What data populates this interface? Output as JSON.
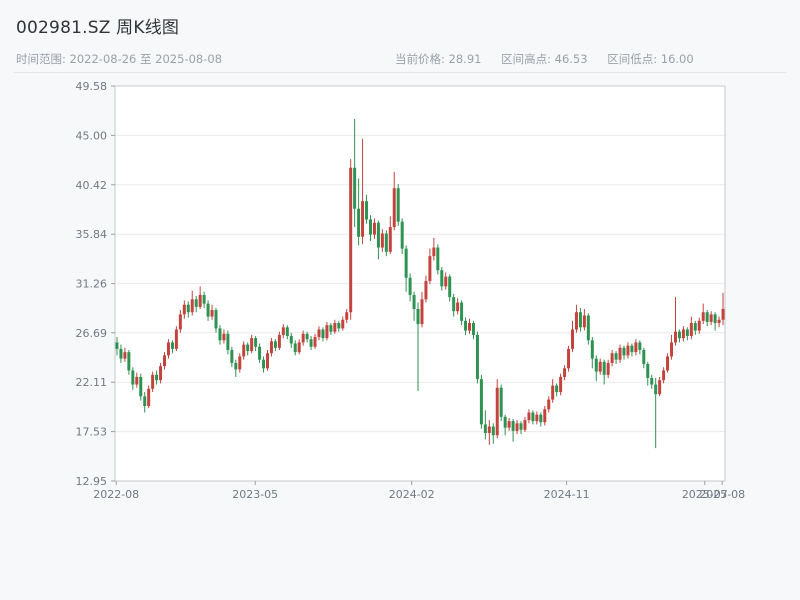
{
  "header": {
    "title": "002981.SZ 周K线图",
    "time_range_label": "时间范围: 2022-08-26 至 2025-08-08",
    "stats": {
      "current_price_label": "当前价格: 28.91",
      "range_high_label": "区间高点: 46.53",
      "range_low_label": "区间低点: 16.00"
    }
  },
  "chart_data": {
    "type": "candlestick",
    "symbol": "002981.SZ",
    "interval": "weekly",
    "start_date": "2022-08-26",
    "end_date": "2025-08-08",
    "current_price": 28.91,
    "range_high": 46.53,
    "range_low": 16.0,
    "ylim": [
      12.95,
      49.58
    ],
    "y_ticks": [
      12.95,
      17.53,
      22.11,
      26.69,
      31.26,
      35.84,
      40.42,
      45.0,
      49.58
    ],
    "x_ticks": [
      {
        "pos": 0.3,
        "label": "2022-08"
      },
      {
        "pos": 35.4,
        "label": "2023-05"
      },
      {
        "pos": 74.9,
        "label": "2024-02"
      },
      {
        "pos": 114.0,
        "label": "2024-11"
      },
      {
        "pos": 148.9,
        "label": "2025-07"
      },
      {
        "pos": 153.3,
        "label": "2025-08"
      }
    ],
    "grid": "horizontal",
    "legend": "none",
    "colors": {
      "up": "#c5433d",
      "down": "#2e9352",
      "grid": "#ececef",
      "axis": "#c6cad0",
      "tick": "#9aa0a8",
      "plot_bg": "#ffffff"
    },
    "ohlc": [
      [
        25.8,
        26.3,
        24.6,
        25.2
      ],
      [
        25.2,
        25.6,
        23.9,
        24.3
      ],
      [
        24.3,
        25.3,
        24.0,
        24.9
      ],
      [
        24.9,
        25.1,
        22.8,
        23.2
      ],
      [
        23.2,
        23.5,
        21.4,
        21.9
      ],
      [
        21.9,
        23.0,
        21.6,
        22.6
      ],
      [
        22.6,
        22.9,
        20.4,
        20.8
      ],
      [
        20.8,
        21.2,
        19.3,
        19.9
      ],
      [
        19.9,
        21.8,
        19.7,
        21.5
      ],
      [
        21.5,
        23.1,
        21.2,
        22.8
      ],
      [
        22.8,
        23.2,
        21.9,
        22.3
      ],
      [
        22.3,
        23.9,
        22.0,
        23.6
      ],
      [
        23.6,
        24.9,
        23.3,
        24.6
      ],
      [
        24.6,
        26.1,
        24.3,
        25.8
      ],
      [
        25.8,
        26.0,
        24.8,
        25.2
      ],
      [
        25.2,
        27.3,
        25.0,
        27.0
      ],
      [
        27.0,
        28.8,
        26.7,
        28.4
      ],
      [
        28.4,
        29.7,
        28.0,
        29.3
      ],
      [
        29.3,
        29.6,
        28.1,
        28.6
      ],
      [
        28.6,
        30.6,
        28.3,
        29.8
      ],
      [
        29.8,
        30.1,
        28.6,
        29.1
      ],
      [
        29.1,
        31.0,
        28.9,
        30.2
      ],
      [
        30.2,
        30.5,
        29.0,
        29.4
      ],
      [
        29.4,
        29.7,
        27.8,
        28.2
      ],
      [
        28.2,
        29.3,
        27.9,
        28.8
      ],
      [
        28.8,
        29.0,
        26.7,
        27.1
      ],
      [
        27.1,
        27.4,
        25.6,
        26.0
      ],
      [
        26.0,
        27.0,
        25.7,
        26.6
      ],
      [
        26.6,
        26.9,
        24.7,
        25.1
      ],
      [
        25.1,
        25.4,
        23.5,
        23.9
      ],
      [
        23.9,
        24.2,
        22.6,
        23.3
      ],
      [
        23.3,
        24.8,
        23.0,
        24.5
      ],
      [
        24.5,
        25.9,
        24.2,
        25.6
      ],
      [
        25.6,
        25.8,
        24.6,
        25.0
      ],
      [
        25.0,
        26.5,
        24.8,
        26.2
      ],
      [
        26.2,
        26.4,
        25.0,
        25.4
      ],
      [
        25.4,
        25.7,
        23.9,
        24.2
      ],
      [
        24.2,
        24.5,
        23.0,
        23.4
      ],
      [
        23.4,
        25.1,
        23.2,
        24.8
      ],
      [
        24.8,
        26.2,
        24.5,
        25.9
      ],
      [
        25.9,
        26.1,
        25.0,
        25.3
      ],
      [
        25.3,
        26.8,
        25.1,
        26.5
      ],
      [
        26.5,
        27.5,
        26.2,
        27.2
      ],
      [
        27.2,
        27.4,
        26.1,
        26.4
      ],
      [
        26.4,
        26.7,
        25.3,
        25.7
      ],
      [
        25.7,
        26.0,
        24.6,
        24.9
      ],
      [
        24.9,
        26.1,
        24.7,
        25.8
      ],
      [
        25.8,
        26.9,
        25.5,
        26.6
      ],
      [
        26.6,
        26.8,
        25.8,
        26.1
      ],
      [
        26.1,
        26.4,
        25.1,
        25.4
      ],
      [
        25.4,
        26.6,
        25.2,
        26.3
      ],
      [
        26.3,
        27.3,
        26.0,
        27.0
      ],
      [
        27.0,
        27.2,
        25.9,
        26.2
      ],
      [
        26.2,
        27.7,
        26.0,
        27.4
      ],
      [
        27.4,
        27.6,
        26.5,
        26.8
      ],
      [
        26.8,
        27.9,
        26.6,
        27.6
      ],
      [
        27.6,
        27.8,
        26.8,
        27.1
      ],
      [
        27.1,
        28.2,
        26.9,
        27.9
      ],
      [
        27.9,
        28.9,
        27.6,
        28.6
      ],
      [
        28.6,
        42.8,
        27.9,
        42.0
      ],
      [
        42.0,
        46.53,
        36.5,
        38.2
      ],
      [
        38.2,
        41.0,
        34.8,
        35.6
      ],
      [
        35.6,
        44.7,
        34.9,
        38.9
      ],
      [
        38.9,
        39.5,
        36.8,
        37.2
      ],
      [
        37.2,
        37.6,
        35.2,
        35.8
      ],
      [
        35.8,
        37.3,
        35.4,
        36.9
      ],
      [
        36.9,
        37.1,
        33.5,
        34.6
      ],
      [
        34.6,
        36.3,
        34.2,
        35.9
      ],
      [
        35.9,
        36.2,
        33.8,
        34.2
      ],
      [
        34.2,
        37.5,
        34.0,
        36.5
      ],
      [
        36.5,
        41.6,
        36.2,
        40.1
      ],
      [
        40.1,
        40.5,
        36.6,
        37.0
      ],
      [
        37.0,
        37.3,
        34.0,
        34.5
      ],
      [
        34.5,
        34.8,
        30.5,
        31.8
      ],
      [
        31.8,
        32.2,
        29.6,
        30.2
      ],
      [
        30.2,
        30.5,
        27.8,
        28.9
      ],
      [
        28.9,
        29.5,
        21.3,
        27.5
      ],
      [
        27.5,
        30.5,
        27.2,
        29.8
      ],
      [
        29.8,
        32.0,
        29.5,
        31.5
      ],
      [
        31.5,
        34.5,
        31.2,
        33.8
      ],
      [
        33.8,
        35.5,
        33.4,
        34.6
      ],
      [
        34.6,
        34.9,
        32.1,
        32.5
      ],
      [
        32.5,
        32.8,
        30.6,
        31.0
      ],
      [
        31.0,
        32.3,
        30.7,
        31.9
      ],
      [
        31.9,
        32.1,
        29.6,
        30.0
      ],
      [
        30.0,
        30.3,
        28.2,
        28.7
      ],
      [
        28.7,
        29.9,
        28.4,
        29.5
      ],
      [
        29.5,
        29.7,
        27.4,
        27.8
      ],
      [
        27.8,
        28.1,
        26.5,
        26.9
      ],
      [
        26.9,
        28.0,
        26.6,
        27.6
      ],
      [
        27.6,
        27.8,
        26.1,
        26.5
      ],
      [
        26.5,
        26.8,
        22.0,
        22.4
      ],
      [
        22.4,
        22.8,
        17.8,
        18.2
      ],
      [
        18.2,
        19.5,
        16.8,
        17.4
      ],
      [
        17.4,
        18.6,
        16.3,
        18.0
      ],
      [
        18.0,
        18.3,
        16.4,
        17.2
      ],
      [
        17.2,
        22.4,
        16.9,
        21.6
      ],
      [
        21.6,
        21.9,
        18.5,
        18.9
      ],
      [
        18.9,
        19.1,
        17.2,
        17.9
      ],
      [
        17.9,
        18.8,
        17.6,
        18.5
      ],
      [
        18.5,
        18.7,
        16.6,
        17.6
      ],
      [
        17.6,
        18.6,
        17.3,
        18.3
      ],
      [
        18.3,
        18.5,
        17.3,
        17.7
      ],
      [
        17.7,
        18.9,
        17.5,
        18.6
      ],
      [
        18.6,
        19.6,
        18.3,
        19.3
      ],
      [
        19.3,
        19.5,
        18.2,
        18.5
      ],
      [
        18.5,
        19.4,
        18.2,
        19.1
      ],
      [
        19.1,
        19.3,
        18.0,
        18.4
      ],
      [
        18.4,
        19.9,
        18.1,
        19.6
      ],
      [
        19.6,
        20.8,
        19.3,
        20.5
      ],
      [
        20.5,
        22.4,
        20.2,
        21.8
      ],
      [
        21.8,
        22.0,
        20.8,
        21.2
      ],
      [
        21.2,
        22.9,
        20.9,
        22.6
      ],
      [
        22.6,
        23.7,
        22.3,
        23.4
      ],
      [
        23.4,
        25.5,
        23.1,
        25.2
      ],
      [
        25.2,
        27.8,
        24.9,
        27.0
      ],
      [
        27.0,
        29.3,
        26.7,
        28.6
      ],
      [
        28.6,
        29.0,
        26.8,
        27.2
      ],
      [
        27.2,
        28.9,
        26.9,
        28.3
      ],
      [
        28.3,
        28.5,
        25.6,
        26.0
      ],
      [
        26.0,
        26.3,
        23.4,
        24.3
      ],
      [
        24.3,
        24.6,
        22.2,
        23.1
      ],
      [
        23.1,
        24.3,
        22.8,
        24.0
      ],
      [
        24.0,
        24.2,
        21.9,
        22.8
      ],
      [
        22.8,
        24.2,
        22.5,
        23.9
      ],
      [
        23.9,
        25.1,
        23.6,
        24.8
      ],
      [
        24.8,
        25.0,
        23.8,
        24.2
      ],
      [
        24.2,
        25.6,
        23.9,
        25.3
      ],
      [
        25.3,
        25.5,
        24.2,
        24.6
      ],
      [
        24.6,
        25.8,
        24.3,
        25.5
      ],
      [
        25.5,
        25.7,
        24.5,
        24.9
      ],
      [
        24.9,
        26.1,
        24.6,
        25.8
      ],
      [
        25.8,
        26.0,
        24.7,
        25.1
      ],
      [
        25.1,
        25.3,
        23.4,
        23.8
      ],
      [
        23.8,
        24.0,
        21.8,
        22.5
      ],
      [
        22.5,
        22.8,
        21.5,
        21.9
      ],
      [
        21.9,
        22.5,
        16.0,
        21.0
      ],
      [
        21.0,
        22.6,
        20.8,
        22.3
      ],
      [
        22.3,
        23.5,
        22.0,
        23.2
      ],
      [
        23.2,
        24.8,
        23.0,
        24.5
      ],
      [
        24.5,
        26.5,
        24.2,
        25.8
      ],
      [
        25.8,
        30.0,
        25.5,
        26.8
      ],
      [
        26.8,
        27.0,
        25.8,
        26.2
      ],
      [
        26.2,
        27.3,
        25.9,
        27.0
      ],
      [
        27.0,
        27.2,
        26.0,
        26.4
      ],
      [
        26.4,
        28.2,
        26.1,
        27.6
      ],
      [
        27.6,
        27.8,
        26.5,
        26.9
      ],
      [
        26.9,
        28.1,
        26.6,
        27.8
      ],
      [
        27.8,
        29.4,
        27.5,
        28.6
      ],
      [
        28.6,
        28.8,
        27.3,
        27.7
      ],
      [
        27.7,
        28.7,
        27.4,
        28.4
      ],
      [
        28.4,
        28.6,
        26.9,
        27.6
      ],
      [
        27.6,
        28.2,
        27.2,
        27.9
      ],
      [
        27.9,
        30.4,
        27.4,
        28.91
      ]
    ]
  }
}
